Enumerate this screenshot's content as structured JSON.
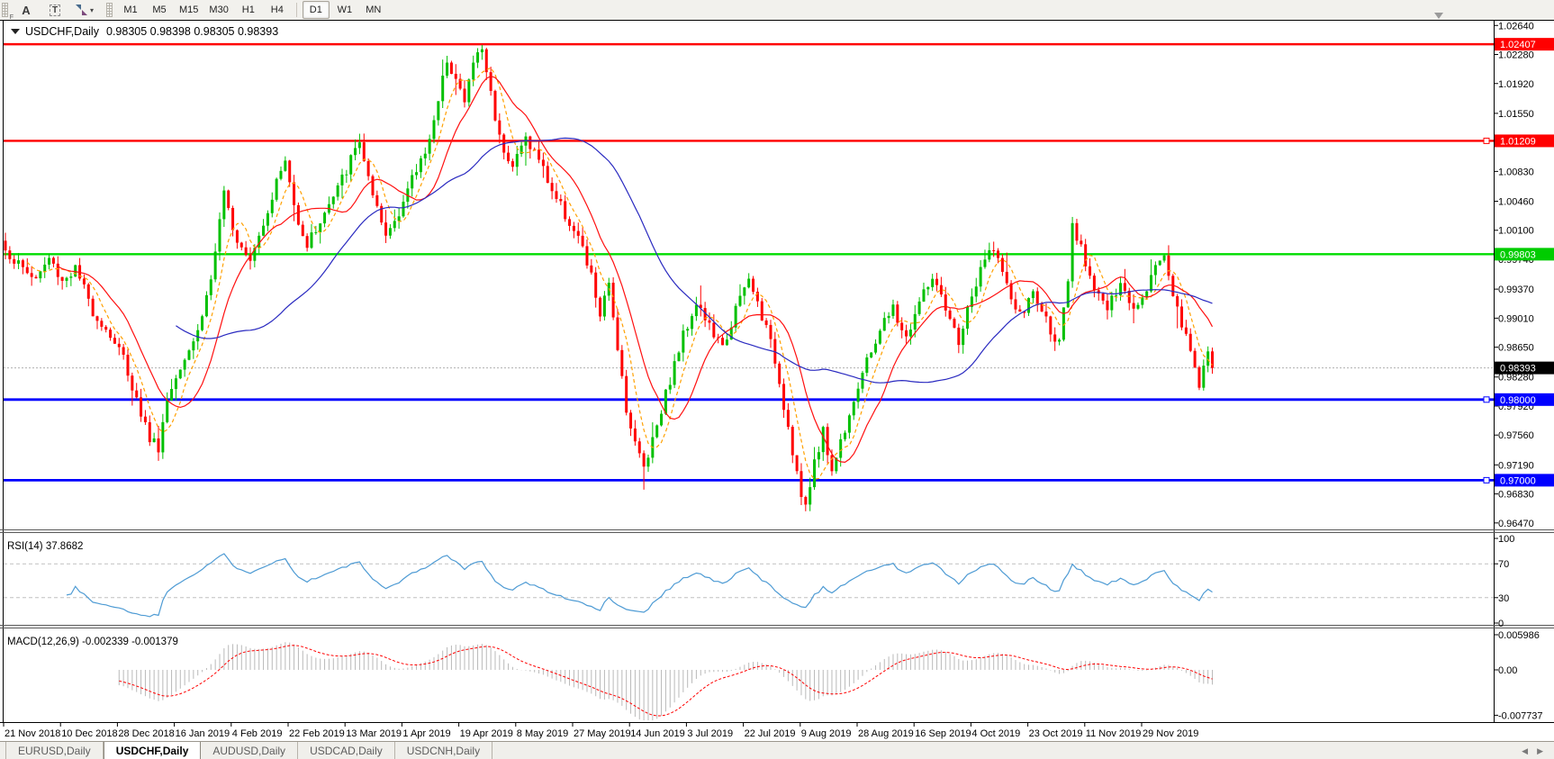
{
  "toolbar": {
    "grip_label": "F",
    "font_icon": "A",
    "text_icon": "T",
    "timeframes": [
      "M1",
      "M5",
      "M15",
      "M30",
      "H1",
      "H4",
      "D1",
      "W1",
      "MN"
    ],
    "active_timeframe": "D1"
  },
  "chart": {
    "title_symbol": "USDCHF,Daily",
    "title_ohlc": "0.98305 0.98398 0.98305 0.98393",
    "current_price_label": "0.98393",
    "price_axis_ticks": [
      "1.02640",
      "1.02280",
      "1.01920",
      "1.01550",
      "1.01190",
      "1.00830",
      "1.00460",
      "1.00100",
      "0.99740",
      "0.99370",
      "0.99010",
      "0.98650",
      "0.98280",
      "0.97920",
      "0.97560",
      "0.97190",
      "0.96830",
      "0.96470"
    ],
    "hlines": [
      {
        "label": "1.02407",
        "price": 1.02407,
        "color": "#ff0000",
        "width": 2.4,
        "handle": false
      },
      {
        "label": "1.01209",
        "price": 1.01209,
        "color": "#ff0000",
        "width": 2.4,
        "handle": true
      },
      {
        "label": "0.99803",
        "price": 0.99803,
        "color": "#00dd00",
        "width": 2.4,
        "handle": false
      },
      {
        "label": "0.98000",
        "price": 0.98,
        "color": "#0000ff",
        "width": 2.8,
        "handle": true
      },
      {
        "label": "0.97000",
        "price": 0.97,
        "color": "#0000ff",
        "width": 2.8,
        "handle": true
      }
    ],
    "date_axis": [
      "21 Nov 2018",
      "10 Dec 2018",
      "28 Dec 2018",
      "16 Jan 2019",
      "4 Feb 2019",
      "22 Feb 2019",
      "13 Mar 2019",
      "1 Apr 2019",
      "19 Apr 2019",
      "8 May 2019",
      "27 May 2019",
      "14 Jun 2019",
      "3 Jul 2019",
      "22 Jul 2019",
      "9 Aug 2019",
      "28 Aug 2019",
      "16 Sep 2019",
      "4 Oct 2019",
      "23 Oct 2019",
      "11 Nov 2019",
      "29 Nov 2019"
    ]
  },
  "rsi": {
    "label": "RSI(14) 37.8682",
    "value": 37.8682,
    "scale": [
      "100",
      "70",
      "30",
      "0"
    ],
    "levels": [
      70,
      30
    ]
  },
  "macd": {
    "label": "MACD(12,26,9) -0.002339 -0.001379",
    "values": [
      -0.002339,
      -0.001379
    ],
    "scale_top": "0.005986",
    "scale_zero": "0.00",
    "scale_bottom": "-0.007737"
  },
  "tabs": [
    {
      "label": "EURUSD,Daily",
      "active": false
    },
    {
      "label": "USDCHF,Daily",
      "active": true
    },
    {
      "label": "AUDUSD,Daily",
      "active": false
    },
    {
      "label": "USDCAD,Daily",
      "active": false
    },
    {
      "label": "USDCNH,Daily",
      "active": false
    }
  ],
  "colors": {
    "up_candle": "#00c000",
    "down_candle": "#ff0000",
    "ma_fast_orange": "#ffa000",
    "ma_mid_red": "#ff1010",
    "ma_slow_blue": "#2a2ac0",
    "rsi_line": "#4e9bd4",
    "rsi_level": "#c0c0c0",
    "macd_hist": "#b9b9b9",
    "macd_signal": "#ff0000",
    "hline_red": "#ff0000",
    "hline_green": "#00dd00",
    "hline_blue": "#0000ff",
    "current_price_line": "#b0b0b0",
    "current_price_bg": "#000000",
    "axis_text": "#000000"
  },
  "chart_data": {
    "type": "candlestick",
    "symbol": "USDCHF",
    "period": "Daily",
    "bars": 277,
    "price_range_top": 1.0271,
    "price_range_bottom": 0.9639,
    "close_anchors": [
      [
        0,
        0.9985
      ],
      [
        4,
        0.9962
      ],
      [
        7,
        0.995
      ],
      [
        10,
        0.9975
      ],
      [
        13,
        0.9948
      ],
      [
        16,
        0.9962
      ],
      [
        20,
        0.991
      ],
      [
        24,
        0.988
      ],
      [
        27,
        0.9852
      ],
      [
        30,
        0.98
      ],
      [
        33,
        0.9752
      ],
      [
        35,
        0.9742
      ],
      [
        37,
        0.98
      ],
      [
        40,
        0.9845
      ],
      [
        44,
        0.9885
      ],
      [
        47,
        0.995
      ],
      [
        50,
        1.0052
      ],
      [
        53,
        1.0
      ],
      [
        56,
        0.9978
      ],
      [
        59,
        1.002
      ],
      [
        62,
        1.007
      ],
      [
        64,
        1.0096
      ],
      [
        66,
        1.004
      ],
      [
        69,
        0.9992
      ],
      [
        72,
        1.0022
      ],
      [
        75,
        1.005
      ],
      [
        78,
        1.0085
      ],
      [
        81,
        1.0122
      ],
      [
        84,
        1.0048
      ],
      [
        87,
        1.0002
      ],
      [
        90,
        1.0035
      ],
      [
        93,
        1.0072
      ],
      [
        96,
        1.011
      ],
      [
        99,
        1.0165
      ],
      [
        101,
        1.0225
      ],
      [
        103,
        1.0198
      ],
      [
        105,
        1.0168
      ],
      [
        107,
        1.022
      ],
      [
        109,
        1.0235
      ],
      [
        111,
        1.018
      ],
      [
        113,
        1.0125
      ],
      [
        116,
        1.009
      ],
      [
        119,
        1.0125
      ],
      [
        122,
        1.0098
      ],
      [
        125,
        1.006
      ],
      [
        128,
        1.003
      ],
      [
        131,
        1.0
      ],
      [
        134,
        0.9952
      ],
      [
        136,
        0.9905
      ],
      [
        138,
        0.994
      ],
      [
        140,
        0.9868
      ],
      [
        142,
        0.979
      ],
      [
        144,
        0.9745
      ],
      [
        146,
        0.9717
      ],
      [
        148,
        0.9752
      ],
      [
        150,
        0.979
      ],
      [
        152,
        0.9825
      ],
      [
        155,
        0.988
      ],
      [
        158,
        0.9922
      ],
      [
        161,
        0.989
      ],
      [
        164,
        0.9862
      ],
      [
        167,
        0.9912
      ],
      [
        170,
        0.9948
      ],
      [
        173,
        0.9905
      ],
      [
        176,
        0.985
      ],
      [
        178,
        0.9795
      ],
      [
        180,
        0.9738
      ],
      [
        182,
        0.968
      ],
      [
        183,
        0.9662
      ],
      [
        185,
        0.9725
      ],
      [
        187,
        0.976
      ],
      [
        189,
        0.9712
      ],
      [
        191,
        0.9748
      ],
      [
        194,
        0.9802
      ],
      [
        197,
        0.9845
      ],
      [
        200,
        0.9888
      ],
      [
        203,
        0.9912
      ],
      [
        206,
        0.9875
      ],
      [
        209,
        0.9921
      ],
      [
        212,
        0.9952
      ],
      [
        215,
        0.9908
      ],
      [
        218,
        0.9872
      ],
      [
        221,
        0.9928
      ],
      [
        224,
        0.9972
      ],
      [
        226,
        0.9992
      ],
      [
        229,
        0.9938
      ],
      [
        232,
        0.9902
      ],
      [
        235,
        0.9932
      ],
      [
        238,
        0.9898
      ],
      [
        241,
        0.9868
      ],
      [
        243,
        0.9945
      ],
      [
        244,
        1.0012
      ],
      [
        246,
        0.9985
      ],
      [
        249,
        0.9942
      ],
      [
        252,
        0.9912
      ],
      [
        255,
        0.994
      ],
      [
        258,
        0.9915
      ],
      [
        261,
        0.9942
      ],
      [
        263,
        0.9965
      ],
      [
        265,
        0.9982
      ],
      [
        267,
        0.9932
      ],
      [
        269,
        0.9895
      ],
      [
        271,
        0.9858
      ],
      [
        273,
        0.9822
      ],
      [
        274,
        0.9843
      ],
      [
        275,
        0.9858
      ],
      [
        276,
        0.98393
      ]
    ],
    "moving_averages": [
      {
        "name": "fast",
        "period": 6,
        "style": "dashed",
        "color_key": "ma_fast_orange"
      },
      {
        "name": "mid",
        "period": 13,
        "style": "solid",
        "color_key": "ma_mid_red"
      },
      {
        "name": "slow",
        "period": 40,
        "style": "solid",
        "color_key": "ma_slow_blue"
      }
    ],
    "indicators": [
      {
        "name": "RSI",
        "params": [
          14
        ],
        "last": 37.8682
      },
      {
        "name": "MACD",
        "params": [
          12,
          26,
          9
        ],
        "last": [
          -0.002339,
          -0.001379
        ]
      }
    ]
  }
}
